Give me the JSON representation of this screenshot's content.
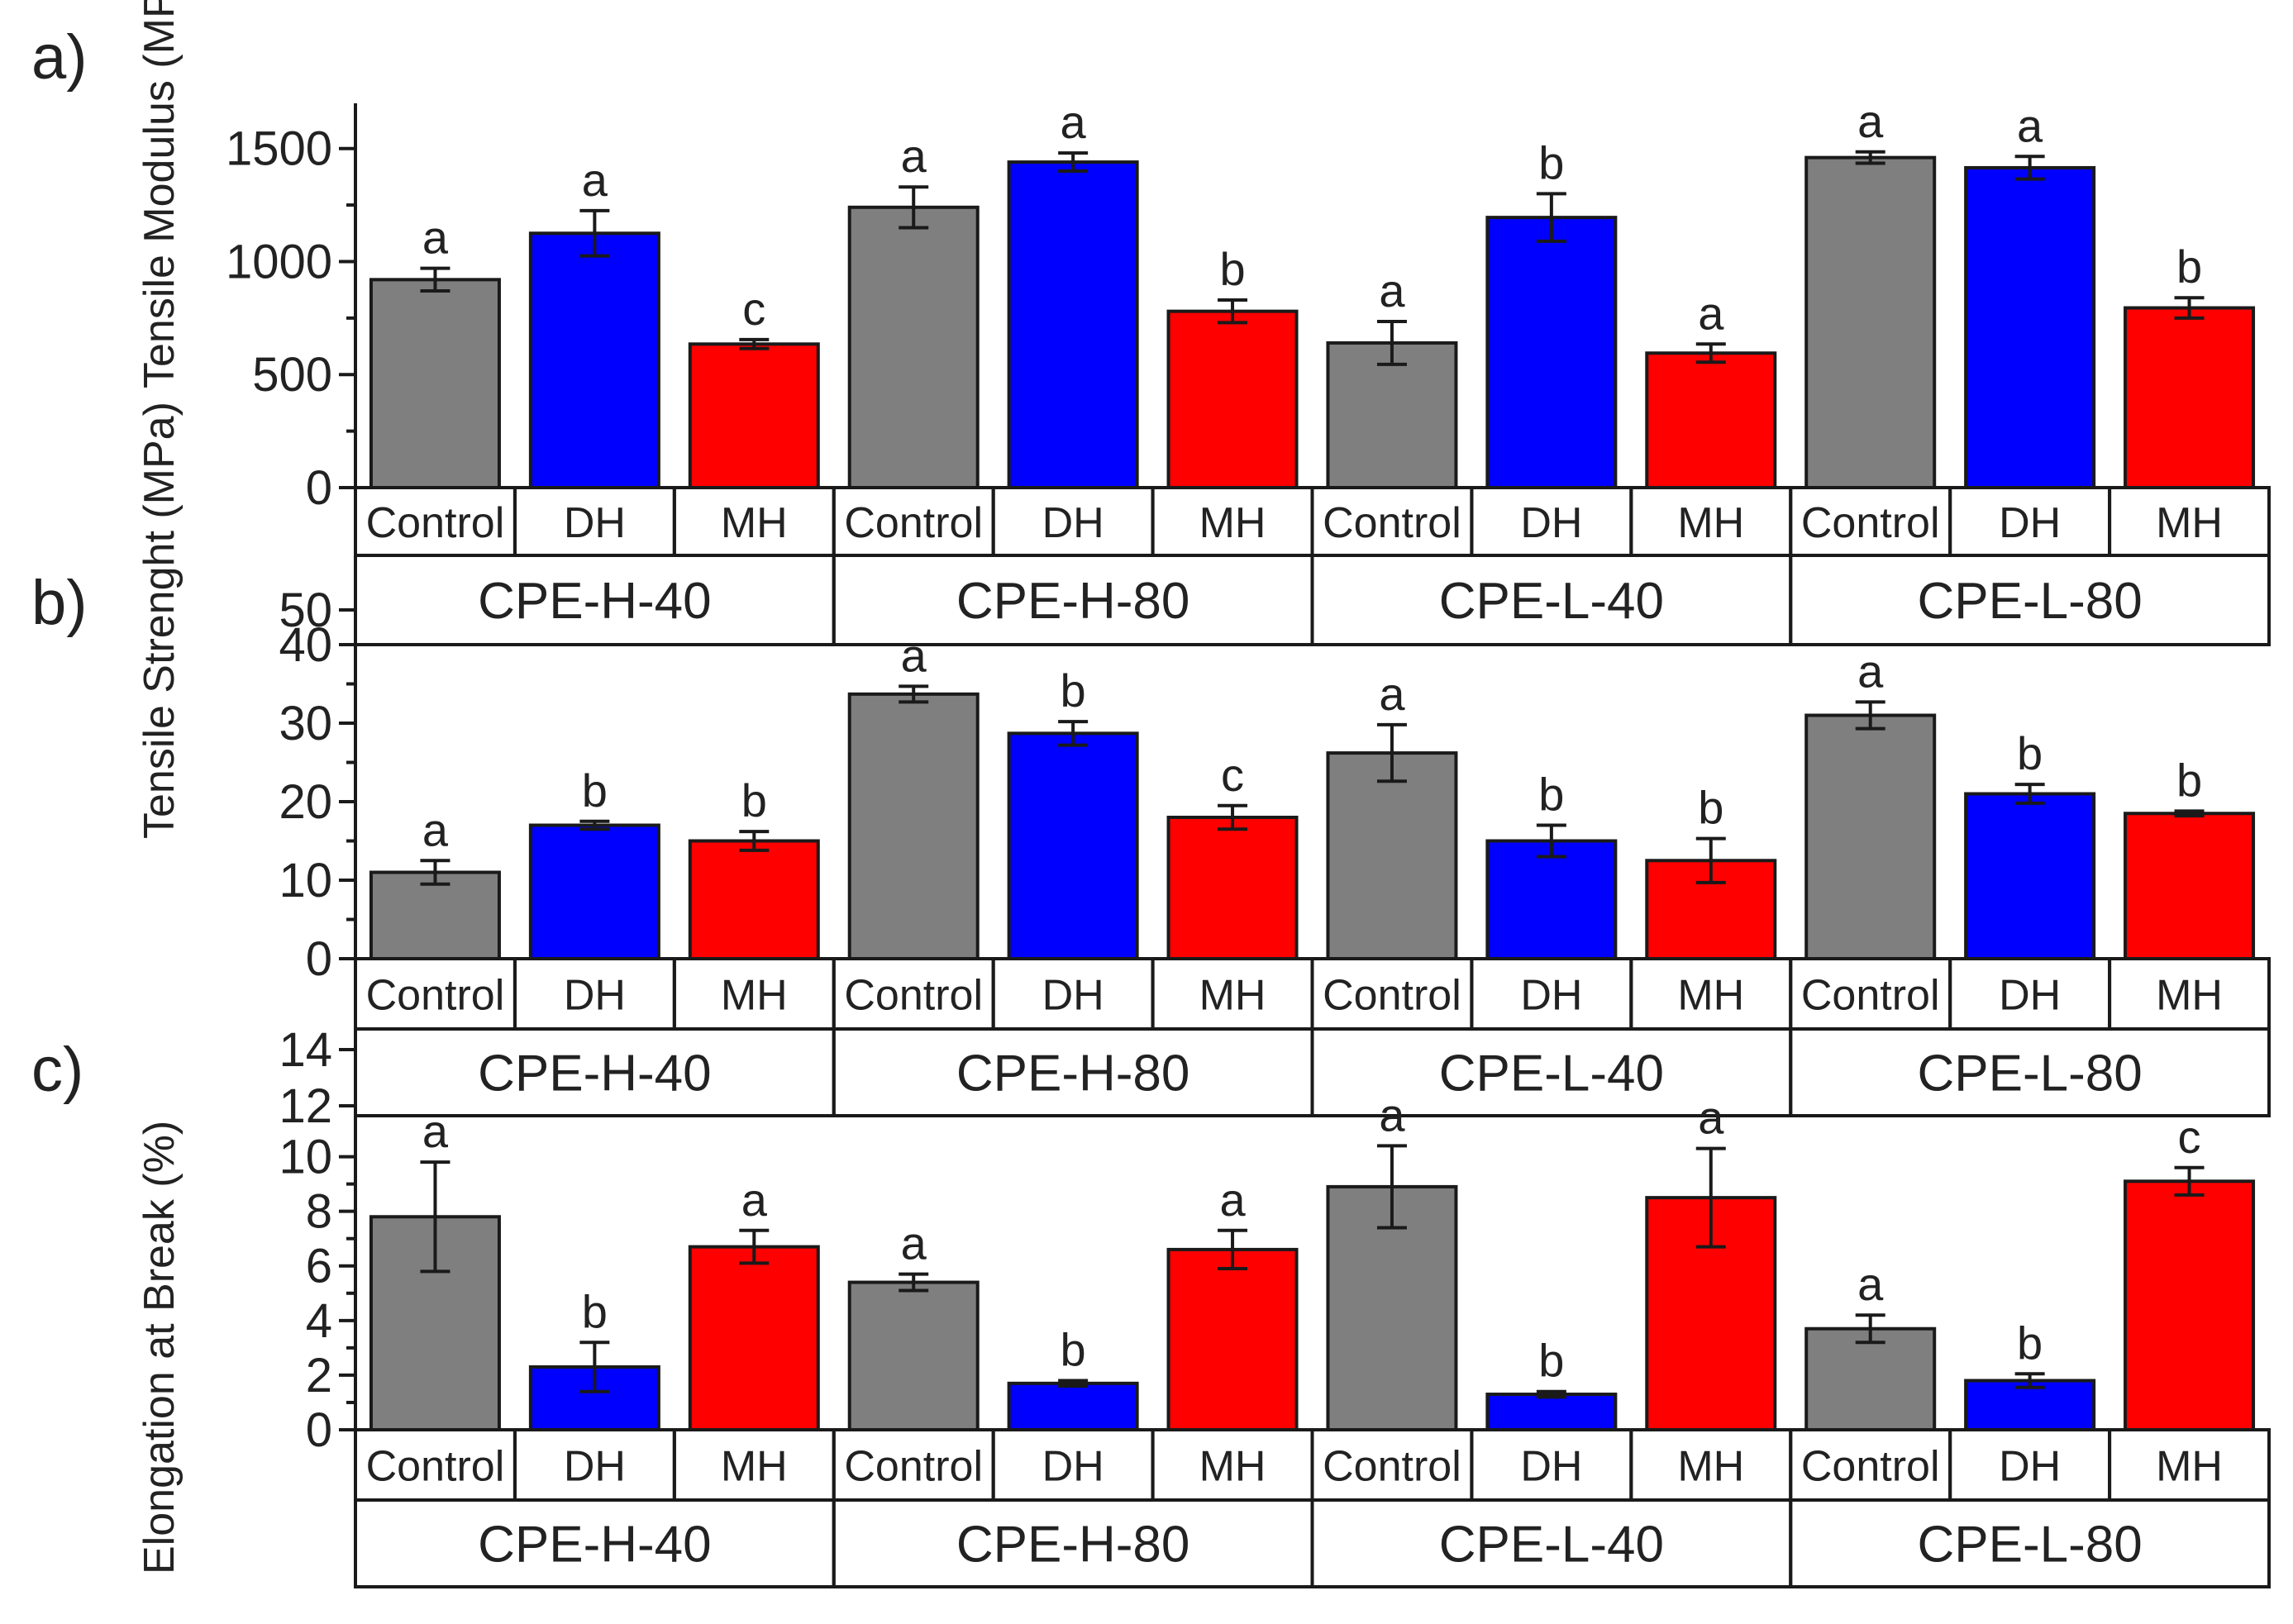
{
  "chart_data": [
    {
      "type": "bar",
      "panel": "a)",
      "ylabel": "Tensile Modulus (MPa)",
      "ylim": [
        0,
        1700
      ],
      "yticks": [
        0,
        500,
        1000,
        1500
      ],
      "groups": [
        "CPE-H-40",
        "CPE-H-80",
        "CPE-L-40",
        "CPE-L-80"
      ],
      "categories": [
        "Control",
        "DH",
        "MH"
      ],
      "colors": {
        "Control": "#7f7f7f",
        "DH": "#0000ff",
        "MH": "#ff0000"
      },
      "bars": [
        {
          "group": "CPE-H-40",
          "category": "Control",
          "value": 920,
          "error": 50,
          "letter": "a"
        },
        {
          "group": "CPE-H-40",
          "category": "DH",
          "value": 1125,
          "error": 100,
          "letter": "a"
        },
        {
          "group": "CPE-H-40",
          "category": "MH",
          "value": 635,
          "error": 20,
          "letter": "c"
        },
        {
          "group": "CPE-H-80",
          "category": "Control",
          "value": 1240,
          "error": 90,
          "letter": "a"
        },
        {
          "group": "CPE-H-80",
          "category": "DH",
          "value": 1440,
          "error": 40,
          "letter": "a"
        },
        {
          "group": "CPE-H-80",
          "category": "MH",
          "value": 780,
          "error": 50,
          "letter": "b"
        },
        {
          "group": "CPE-L-40",
          "category": "Control",
          "value": 640,
          "error": 95,
          "letter": "a"
        },
        {
          "group": "CPE-L-40",
          "category": "DH",
          "value": 1195,
          "error": 105,
          "letter": "b"
        },
        {
          "group": "CPE-L-40",
          "category": "MH",
          "value": 595,
          "error": 40,
          "letter": "a"
        },
        {
          "group": "CPE-L-80",
          "category": "Control",
          "value": 1460,
          "error": 25,
          "letter": "a"
        },
        {
          "group": "CPE-L-80",
          "category": "DH",
          "value": 1415,
          "error": 50,
          "letter": "a"
        },
        {
          "group": "CPE-L-80",
          "category": "MH",
          "value": 795,
          "error": 45,
          "letter": "b"
        }
      ]
    },
    {
      "type": "bar",
      "panel": "b)",
      "ylabel": "Tensile Strenght (MPa)",
      "ylim": [
        0,
        40
      ],
      "yticks": [
        0,
        10,
        20,
        30,
        40
      ],
      "extra_tick": "50",
      "groups": [
        "CPE-H-40",
        "CPE-H-80",
        "CPE-L-40",
        "CPE-L-80"
      ],
      "categories": [
        "Control",
        "DH",
        "MH"
      ],
      "colors": {
        "Control": "#7f7f7f",
        "DH": "#0000ff",
        "MH": "#ff0000"
      },
      "bars": [
        {
          "group": "CPE-H-40",
          "category": "Control",
          "value": 11,
          "error": 1.5,
          "letter": "a"
        },
        {
          "group": "CPE-H-40",
          "category": "DH",
          "value": 17,
          "error": 0.5,
          "letter": "b"
        },
        {
          "group": "CPE-H-40",
          "category": "MH",
          "value": 15,
          "error": 1.2,
          "letter": "b"
        },
        {
          "group": "CPE-H-80",
          "category": "Control",
          "value": 33.7,
          "error": 1.0,
          "letter": "a"
        },
        {
          "group": "CPE-H-80",
          "category": "DH",
          "value": 28.7,
          "error": 1.5,
          "letter": "b"
        },
        {
          "group": "CPE-H-80",
          "category": "MH",
          "value": 18,
          "error": 1.5,
          "letter": "c"
        },
        {
          "group": "CPE-L-40",
          "category": "Control",
          "value": 26.2,
          "error": 3.6,
          "letter": "a"
        },
        {
          "group": "CPE-L-40",
          "category": "DH",
          "value": 15,
          "error": 2.0,
          "letter": "b"
        },
        {
          "group": "CPE-L-40",
          "category": "MH",
          "value": 12.5,
          "error": 2.8,
          "letter": "b"
        },
        {
          "group": "CPE-L-80",
          "category": "Control",
          "value": 31,
          "error": 1.7,
          "letter": "a"
        },
        {
          "group": "CPE-L-80",
          "category": "DH",
          "value": 21,
          "error": 1.2,
          "letter": "b"
        },
        {
          "group": "CPE-L-80",
          "category": "MH",
          "value": 18.5,
          "error": 0.3,
          "letter": "b"
        }
      ]
    },
    {
      "type": "bar",
      "panel": "c)",
      "ylabel": "Elongation at Break (%)",
      "ylim": [
        0,
        11.5
      ],
      "yticks": [
        0,
        2,
        4,
        6,
        8,
        10
      ],
      "extra_ticks": [
        "12",
        "14"
      ],
      "groups": [
        "CPE-H-40",
        "CPE-H-80",
        "CPE-L-40",
        "CPE-L-80"
      ],
      "categories": [
        "Control",
        "DH",
        "MH"
      ],
      "colors": {
        "Control": "#7f7f7f",
        "DH": "#0000ff",
        "MH": "#ff0000"
      },
      "bars": [
        {
          "group": "CPE-H-40",
          "category": "Control",
          "value": 7.8,
          "error": 2.0,
          "letter": "a"
        },
        {
          "group": "CPE-H-40",
          "category": "DH",
          "value": 2.3,
          "error": 0.9,
          "letter": "b"
        },
        {
          "group": "CPE-H-40",
          "category": "MH",
          "value": 6.7,
          "error": 0.6,
          "letter": "a"
        },
        {
          "group": "CPE-H-80",
          "category": "Control",
          "value": 5.4,
          "error": 0.3,
          "letter": "a"
        },
        {
          "group": "CPE-H-80",
          "category": "DH",
          "value": 1.7,
          "error": 0.1,
          "letter": "b"
        },
        {
          "group": "CPE-H-80",
          "category": "MH",
          "value": 6.6,
          "error": 0.7,
          "letter": "a"
        },
        {
          "group": "CPE-L-40",
          "category": "Control",
          "value": 8.9,
          "error": 1.5,
          "letter": "a"
        },
        {
          "group": "CPE-L-40",
          "category": "DH",
          "value": 1.3,
          "error": 0.1,
          "letter": "b"
        },
        {
          "group": "CPE-L-40",
          "category": "MH",
          "value": 8.5,
          "error": 1.8,
          "letter": "a"
        },
        {
          "group": "CPE-L-80",
          "category": "Control",
          "value": 3.7,
          "error": 0.5,
          "letter": "a"
        },
        {
          "group": "CPE-L-80",
          "category": "DH",
          "value": 1.8,
          "error": 0.25,
          "letter": "b"
        },
        {
          "group": "CPE-L-80",
          "category": "MH",
          "value": 9.1,
          "error": 0.5,
          "letter": "c"
        }
      ]
    }
  ]
}
